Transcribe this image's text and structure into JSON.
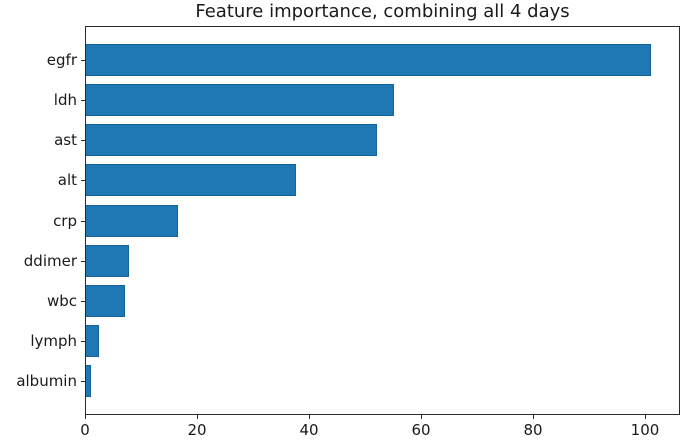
{
  "figure": {
    "title": "Feature importance, combining all 4 days",
    "bar_color": "#1f77b4",
    "bar_edge_color": "#18629a",
    "spine_color": "#2a2a2a",
    "text_color": "#1a1a1a",
    "background_color": "#ffffff"
  },
  "chart_data": {
    "type": "bar",
    "orientation": "horizontal",
    "title": "Feature importance, combining all 4 days",
    "categories": [
      "egfr",
      "ldh",
      "ast",
      "alt",
      "crp",
      "ddimer",
      "wbc",
      "lymph",
      "albumin"
    ],
    "values": [
      101,
      55,
      52,
      37.5,
      16.5,
      7.7,
      7,
      2.4,
      0.9
    ],
    "xlabel": "",
    "ylabel": "",
    "xlim": [
      0,
      106.3
    ],
    "x_ticks": [
      0,
      20,
      40,
      60,
      80,
      100
    ],
    "grid": false,
    "legend": null
  }
}
